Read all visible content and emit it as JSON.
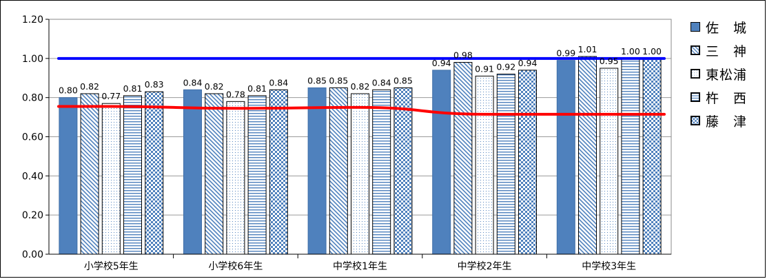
{
  "chart_data": {
    "type": "bar",
    "categories": [
      "小学校5年生",
      "小学校6年生",
      "中学校1年生",
      "中学校2年生",
      "中学校3年生"
    ],
    "series": [
      {
        "name": "佐　城",
        "values": [
          0.8,
          0.84,
          0.85,
          0.94,
          0.99
        ],
        "value_labels": [
          "0.80",
          "0.84",
          "0.85",
          "0.94",
          "0.99"
        ],
        "pattern": "solid",
        "color": "#4f81bd"
      },
      {
        "name": "三　神",
        "values": [
          0.82,
          0.82,
          0.85,
          0.98,
          1.01
        ],
        "value_labels": [
          "0.82",
          "0.82",
          "0.85",
          "0.98",
          "1.01"
        ],
        "pattern": "diagonal",
        "color": "#4f81bd"
      },
      {
        "name": "東松浦",
        "values": [
          0.77,
          0.78,
          0.82,
          0.91,
          0.95
        ],
        "value_labels": [
          "0.77",
          "0.78",
          "0.82",
          "0.91",
          "0.95"
        ],
        "pattern": "dots",
        "color": "#4f81bd"
      },
      {
        "name": "杵　西",
        "values": [
          0.81,
          0.81,
          0.84,
          0.92,
          1.0
        ],
        "value_labels": [
          "0.81",
          "0.81",
          "0.84",
          "0.92",
          "1.00"
        ],
        "pattern": "horizontal",
        "color": "#4f81bd"
      },
      {
        "name": "藤　津",
        "values": [
          0.83,
          0.84,
          0.85,
          0.94,
          1.0
        ],
        "value_labels": [
          "0.83",
          "0.84",
          "0.85",
          "0.94",
          "1.00"
        ],
        "pattern": "checker",
        "color": "#4f81bd"
      }
    ],
    "reference_lines": [
      {
        "values": [
          1.0,
          1.0,
          1.0,
          1.0,
          1.0
        ],
        "color": "#0000ff"
      },
      {
        "values": [
          0.755,
          0.745,
          0.75,
          0.715,
          0.715
        ],
        "color": "#ff0000"
      }
    ],
    "yticks": [
      "0.00",
      "0.20",
      "0.40",
      "0.60",
      "0.80",
      "1.00",
      "1.20"
    ],
    "ylim": [
      0,
      1.2
    ],
    "grid": true,
    "legend_position": "right"
  }
}
